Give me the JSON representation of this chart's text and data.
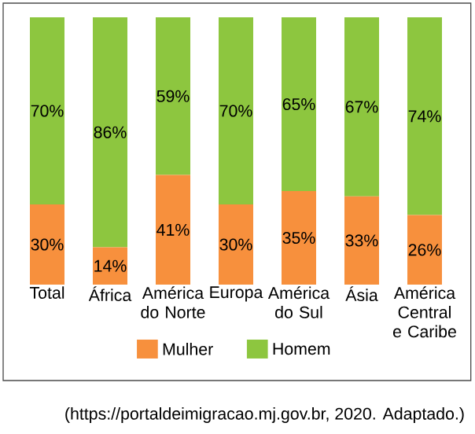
{
  "chart_data": {
    "type": "bar",
    "stacked": true,
    "categories": [
      "Total",
      "África",
      "América do Norte",
      "Europa",
      "América do Sul",
      "Ásia",
      "América Central e Caribe"
    ],
    "series": [
      {
        "name": "Mulher",
        "color": "#f7903d",
        "values": [
          30,
          14,
          41,
          30,
          35,
          33,
          26
        ],
        "value_labels": [
          "30%",
          "14%",
          "41%",
          "30%",
          "35%",
          "33%",
          "26%"
        ]
      },
      {
        "name": "Homem",
        "color": "#8dc63f",
        "values": [
          70,
          86,
          59,
          70,
          65,
          67,
          74
        ],
        "value_labels": [
          "70%",
          "86%",
          "59%",
          "70%",
          "65%",
          "67%",
          "74%"
        ]
      }
    ],
    "legend": "bottom",
    "annotations": [
      "(https://portaldeimigracao.mj.gov.br, 2020. Adaptado.)"
    ]
  }
}
